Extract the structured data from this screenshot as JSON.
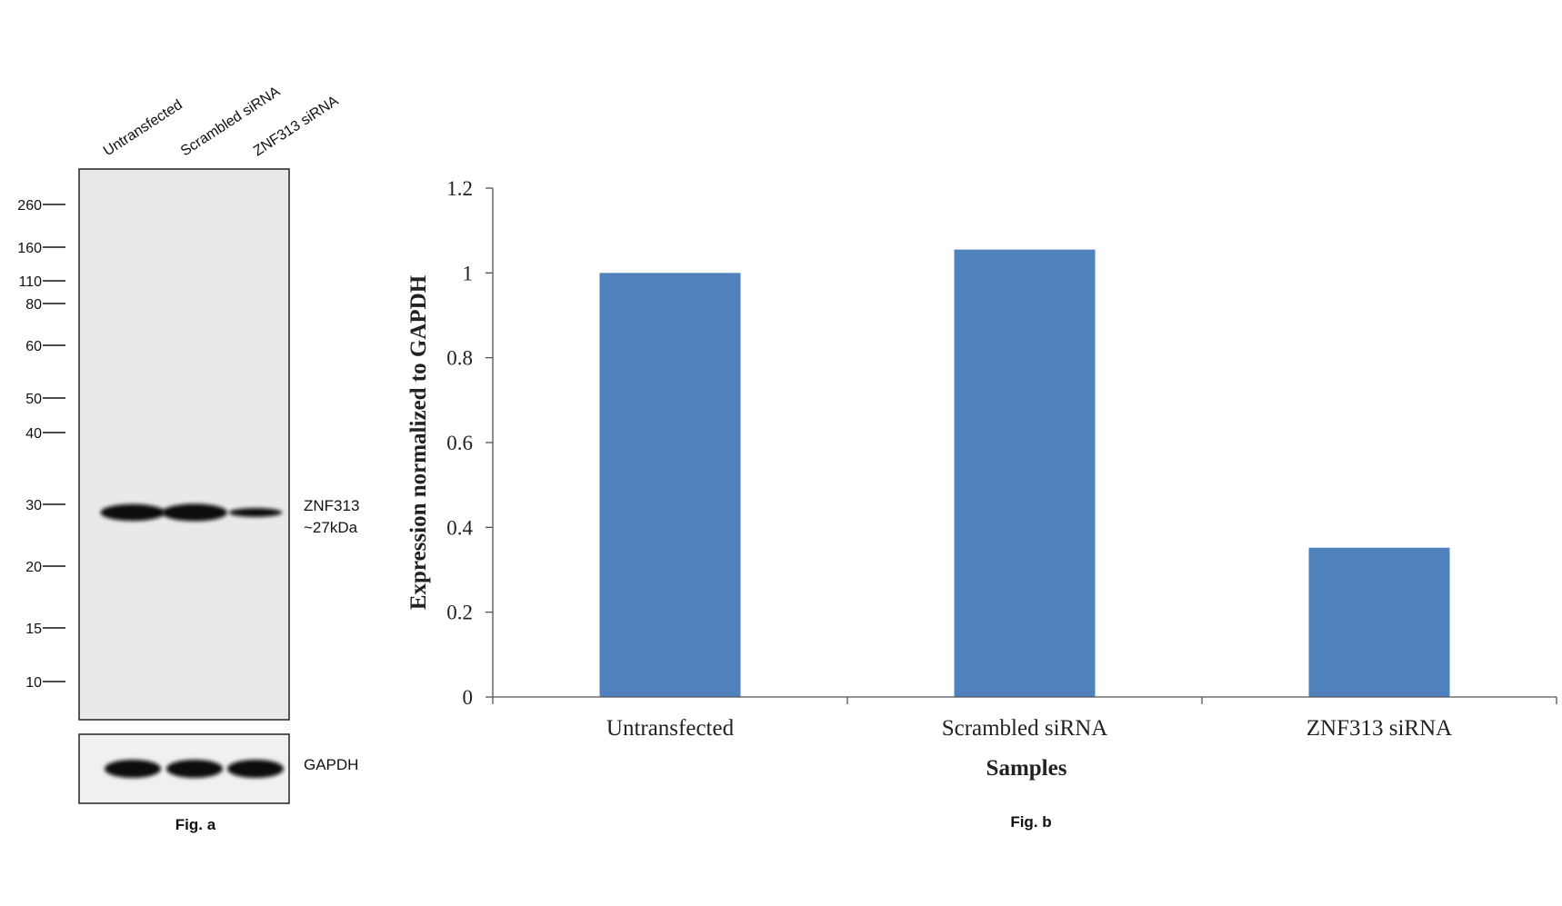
{
  "blot": {
    "caption": "Fig. a",
    "lane_labels": [
      "Untransfected",
      "Scrambled siRNA",
      "ZNF313 siRNA"
    ],
    "markers": [
      "260",
      "160",
      "110",
      "80",
      "60",
      "50",
      "40",
      "30",
      "20",
      "15",
      "10"
    ],
    "band_label_line1": "ZNF313",
    "band_label_line2": "~27kDa",
    "control_label": "GAPDH",
    "band_intensity": [
      1.0,
      1.05,
      0.35
    ]
  },
  "chart_data": {
    "type": "bar",
    "caption": "Fig. b",
    "categories": [
      "Untransfected",
      "Scrambled siRNA",
      "ZNF313 siRNA"
    ],
    "values": [
      1.0,
      1.055,
      0.352
    ],
    "xlabel": "Samples",
    "ylabel": "Expression normalized to GAPDH",
    "ylim": [
      0,
      1.2
    ],
    "yticks": [
      "0",
      "0.2",
      "0.4",
      "0.6",
      "0.8",
      "1",
      "1.2"
    ],
    "grid": false,
    "bar_color": "#4f81bd"
  }
}
